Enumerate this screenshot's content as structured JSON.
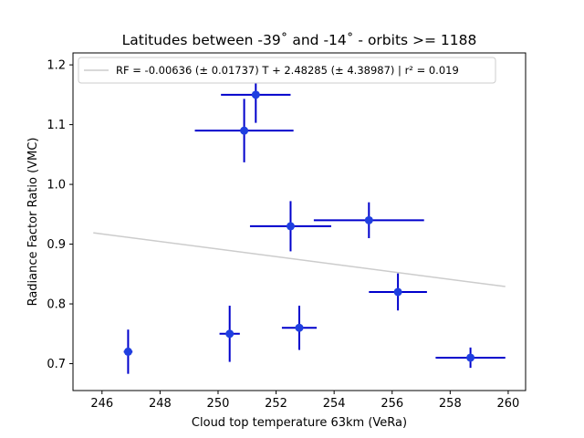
{
  "chart_data": {
    "type": "scatter",
    "title": "Latitudes between -39˚ and -14˚ - orbits >= 1188",
    "xlabel": "Cloud top temperature 63km (VeRa)",
    "ylabel": "Radiance Factor Ratio (VMC)",
    "xlim": [
      245.0,
      260.6
    ],
    "ylim": [
      0.655,
      1.22
    ],
    "xticks": [
      246,
      248,
      250,
      252,
      254,
      256,
      258,
      260
    ],
    "yticks": [
      0.7,
      0.8,
      0.9,
      1.0,
      1.1,
      1.2
    ],
    "xtick_labels": [
      "246",
      "248",
      "250",
      "252",
      "254",
      "256",
      "258",
      "260"
    ],
    "ytick_labels": [
      "0.7",
      "0.8",
      "0.9",
      "1.0",
      "1.1",
      "1.2"
    ],
    "grid": false,
    "legend_position": "top",
    "series": [
      {
        "type": "errorbar",
        "color": "#0000cc",
        "marker_color": "#1f3fe0",
        "points": [
          {
            "x": 246.9,
            "y": 0.72,
            "xerr": 0.15,
            "yerr": 0.037
          },
          {
            "x": 250.4,
            "y": 0.75,
            "xerr": 0.35,
            "yerr": 0.047
          },
          {
            "x": 252.8,
            "y": 0.76,
            "xerr": 0.6,
            "yerr": 0.037
          },
          {
            "x": 258.7,
            "y": 0.71,
            "xerr": 1.2,
            "yerr": 0.017
          },
          {
            "x": 256.2,
            "y": 0.82,
            "xerr": 1.0,
            "yerr": 0.031
          },
          {
            "x": 255.2,
            "y": 0.94,
            "xerr": 1.9,
            "yerr": 0.03
          },
          {
            "x": 252.5,
            "y": 0.93,
            "xerr": 1.4,
            "yerr": 0.042
          },
          {
            "x": 250.9,
            "y": 1.09,
            "xerr": 1.7,
            "yerr": 0.053
          },
          {
            "x": 251.3,
            "y": 1.15,
            "xerr": 1.2,
            "yerr": 0.047
          }
        ]
      },
      {
        "name": "RF = -0.00636 (± 0.01737) T + 2.48285 (± 4.38987) | r² = 0.019",
        "type": "fit_line",
        "color": "#cccccc",
        "x": [
          245.7,
          259.9
        ],
        "y": [
          0.919,
          0.829
        ]
      }
    ]
  }
}
